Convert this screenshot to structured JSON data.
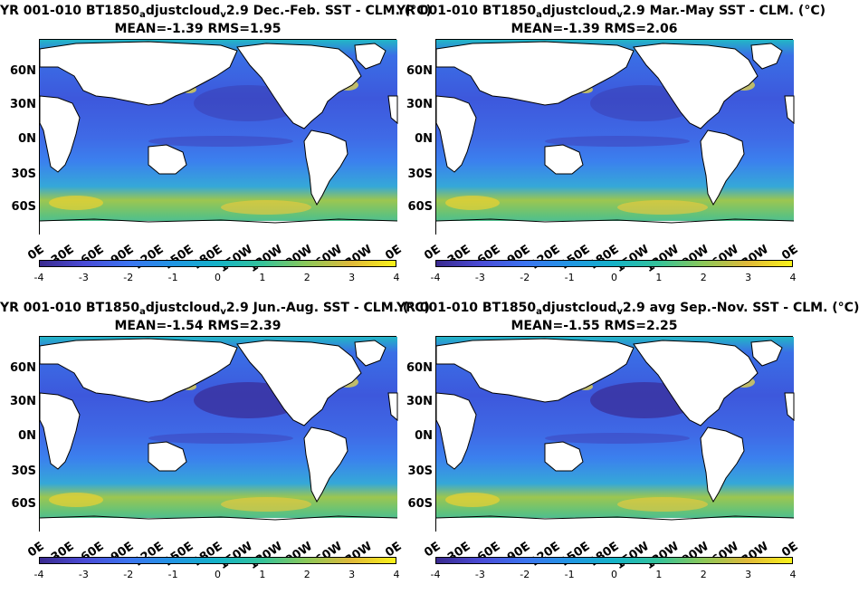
{
  "colorbar": {
    "ticks": [
      "-4",
      "-3",
      "-2",
      "-1",
      "0",
      "1",
      "2",
      "3",
      "4"
    ],
    "colors": [
      "#3a2a8f",
      "#4a4bd6",
      "#3c74f0",
      "#2196e4",
      "#15b3c7",
      "#35c39a",
      "#8cc859",
      "#e0b93a",
      "#f9f21a"
    ]
  },
  "lat_labels": [
    "60N",
    "30N",
    "0N",
    "30S",
    "60S"
  ],
  "lon_labels": [
    "0E",
    "30E",
    "60E",
    "90E",
    "120E",
    "150E",
    "180E",
    "150W",
    "120W",
    "90W",
    "60W",
    "30W",
    "0E"
  ],
  "chart_data": [
    {
      "type": "heatmap",
      "title": "YR 001-010 BT1850_adjustcloud_v2.9  Dec.-Feb. SST - CLM. (°C)",
      "title_main": "YR 001-010 BT1850",
      "title_sub1": "a",
      "title_mid": "djustcloud",
      "title_sub2": "v",
      "title_end": "2.9  Dec.-Feb. SST - CLM. (°C)",
      "stats": "MEAN=-1.39   RMS=1.95",
      "mean": -1.39,
      "rms": 1.95,
      "clim": [
        -4,
        4
      ]
    },
    {
      "type": "heatmap",
      "title": "YR 001-010 BT1850_adjustcloud_v2.9 Mar.-May SST - CLM. (°C)",
      "title_main": "YR 001-010 BT1850",
      "title_sub1": "a",
      "title_mid": "djustcloud",
      "title_sub2": "v",
      "title_end": "2.9 Mar.-May SST - CLM. (°C)",
      "stats": "MEAN=-1.39   RMS=2.06",
      "mean": -1.39,
      "rms": 2.06,
      "clim": [
        -4,
        4
      ]
    },
    {
      "type": "heatmap",
      "title": "YR 001-010 BT1850_adjustcloud_v2.9 Jun.-Aug. SST - CLM. (°C)",
      "title_main": "YR 001-010 BT1850",
      "title_sub1": "a",
      "title_mid": "djustcloud",
      "title_sub2": "v",
      "title_end": "2.9 Jun.-Aug. SST - CLM. (°C)",
      "stats": "MEAN=-1.54   RMS=2.39",
      "mean": -1.54,
      "rms": 2.39,
      "clim": [
        -4,
        4
      ]
    },
    {
      "type": "heatmap",
      "title": "YR 001-010 BT1850_adjustcloud_v2.9 avg Sep.-Nov. SST - CLM. (°C)",
      "title_main": "YR 001-010 BT1850",
      "title_sub1": "a",
      "title_mid": "djustcloud",
      "title_sub2": "v",
      "title_end": "2.9 avg Sep.-Nov. SST - CLM. (°C)",
      "stats": "MEAN=-1.55   RMS=2.25",
      "mean": -1.55,
      "rms": 2.25,
      "clim": [
        -4,
        4
      ]
    }
  ]
}
